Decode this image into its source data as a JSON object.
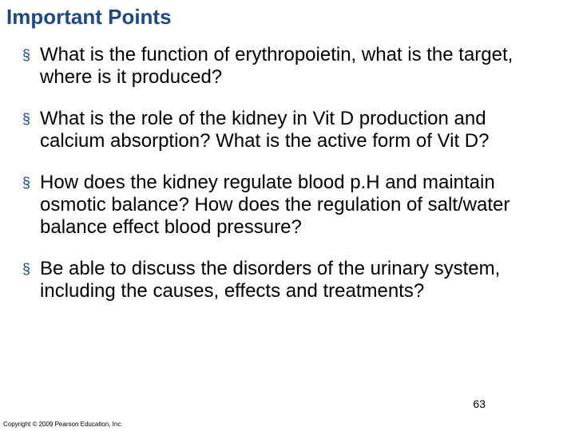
{
  "title": "Important Points",
  "bullets": [
    "What is the function of erythropoietin, what is the target, where is it produced?",
    "What is the role of the kidney in Vit D production and calcium absorption? What is the active form of Vit D?",
    "How does the kidney regulate blood p.H and maintain osmotic balance?  How does the regulation of salt/water balance effect blood pressure?",
    "Be able to discuss the disorders of the urinary system, including the causes, effects and treatments?"
  ],
  "page_number": "63",
  "copyright": "Copyright © 2009 Pearson Education, Inc.",
  "colors": {
    "title_color": "#1f497d",
    "bullet_color": "#1f497d",
    "text_color": "#000000",
    "background": "#ffffff"
  },
  "fonts": {
    "title_size": 26,
    "bullet_text_size": 24,
    "page_num_size": 14,
    "copyright_size": 8
  }
}
